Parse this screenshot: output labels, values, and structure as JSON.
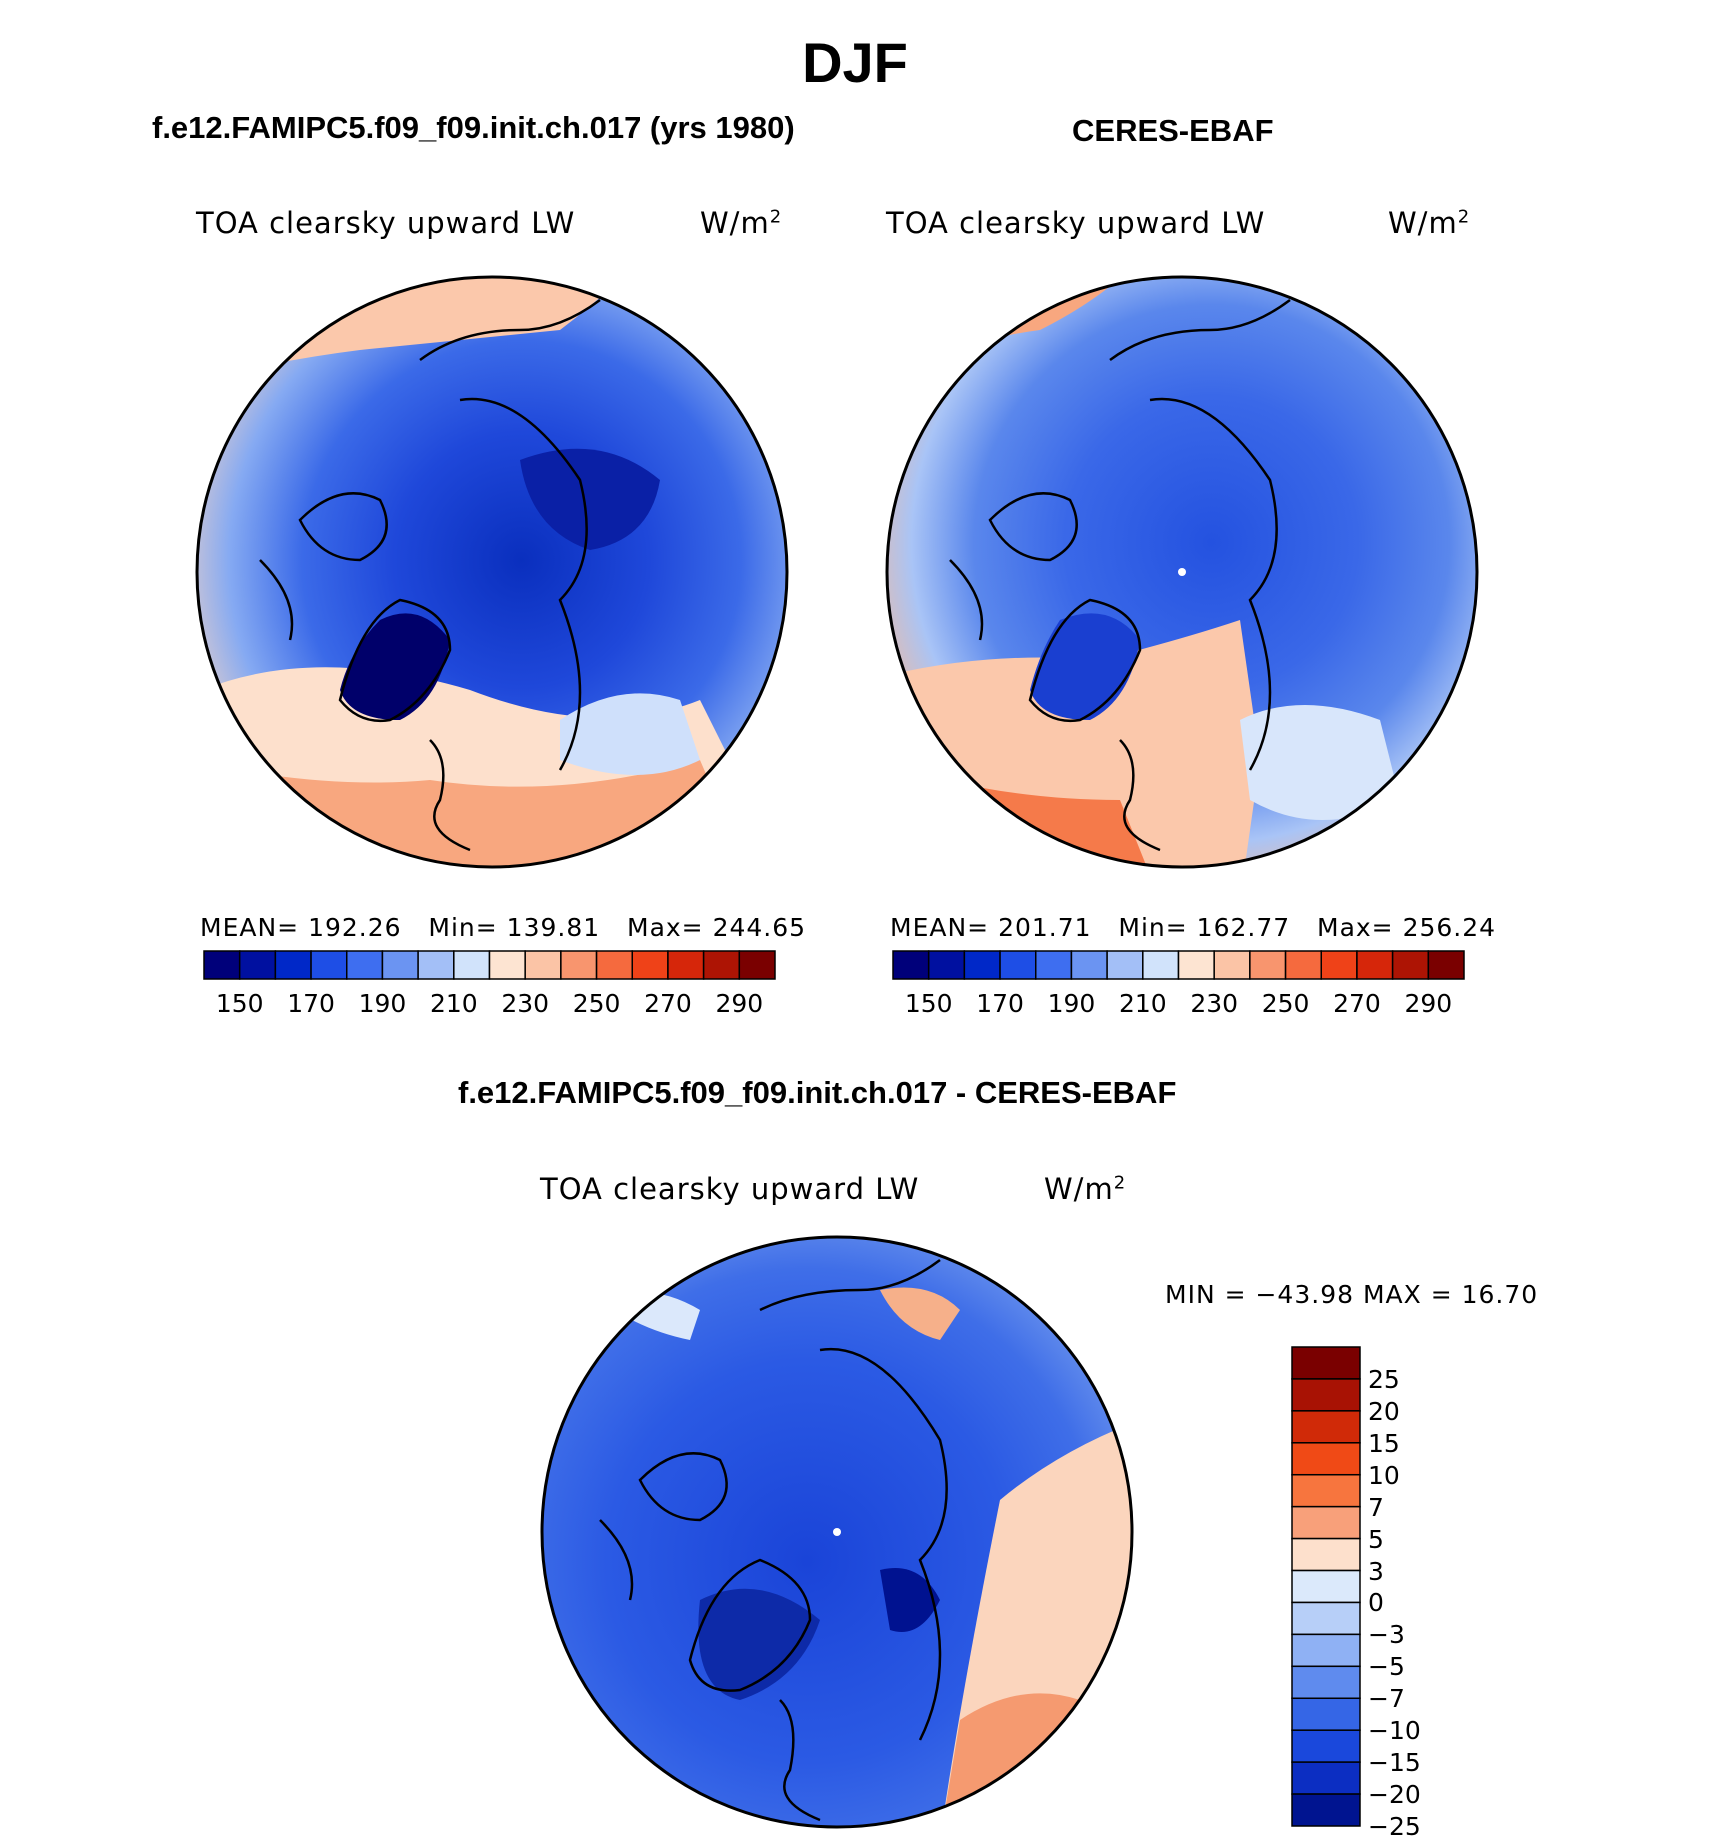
{
  "title": "DJF",
  "panels": [
    {
      "title": "f.e12.FAMIPC5.f09_f09.init.ch.017 (yrs 1980)",
      "variable": "TOA clearsky upward LW",
      "units_base": "W/m",
      "units_exp": "2",
      "mean_label": "MEAN=",
      "mean": "192.26",
      "min_label": "Min=",
      "min": "139.81",
      "max_label": "Max=",
      "max": "244.65"
    },
    {
      "title": "CERES-EBAF",
      "variable": "TOA clearsky upward LW",
      "units_base": "W/m",
      "units_exp": "2",
      "mean_label": "MEAN=",
      "mean": "201.71",
      "min_label": "Min=",
      "min": "162.77",
      "max_label": "Max=",
      "max": "256.24"
    }
  ],
  "abs_colorbar": {
    "colors": [
      "#00007a",
      "#0010a0",
      "#0028c8",
      "#1e4ee6",
      "#3e6ef0",
      "#6b94f2",
      "#a3bff7",
      "#d1e3fb",
      "#fde4d2",
      "#fbc4a6",
      "#f8956e",
      "#f56a3e",
      "#ef4218",
      "#d6260a",
      "#ad1404",
      "#7a0000"
    ],
    "labels": [
      "150",
      "170",
      "190",
      "210",
      "230",
      "250",
      "270",
      "290"
    ]
  },
  "diff": {
    "title": "f.e12.FAMIPC5.f09_f09.init.ch.017 - CERES-EBAF",
    "variable": "TOA clearsky upward LW",
    "units_base": "W/m",
    "units_exp": "2",
    "minmax": "MIN = −43.98 MAX =   16.70"
  },
  "diff_colorbar": {
    "colors": [
      "#7a0000",
      "#a81204",
      "#d02a08",
      "#f04a16",
      "#f7753e",
      "#f8a07a",
      "#fde0cc",
      "#dbe9fb",
      "#b7cff8",
      "#8fb1f4",
      "#5f8bee",
      "#3566e6",
      "#1a48dc",
      "#0c2ec2",
      "#001490"
    ],
    "labels": [
      "25",
      "20",
      "15",
      "10",
      "7",
      "5",
      "3",
      "0",
      "−3",
      "−5",
      "−7",
      "−10",
      "−15",
      "−20",
      "−25"
    ]
  },
  "map_legend": {
    "region": "North polar stereographic view (Arctic)",
    "coastline_color": "#000000"
  }
}
